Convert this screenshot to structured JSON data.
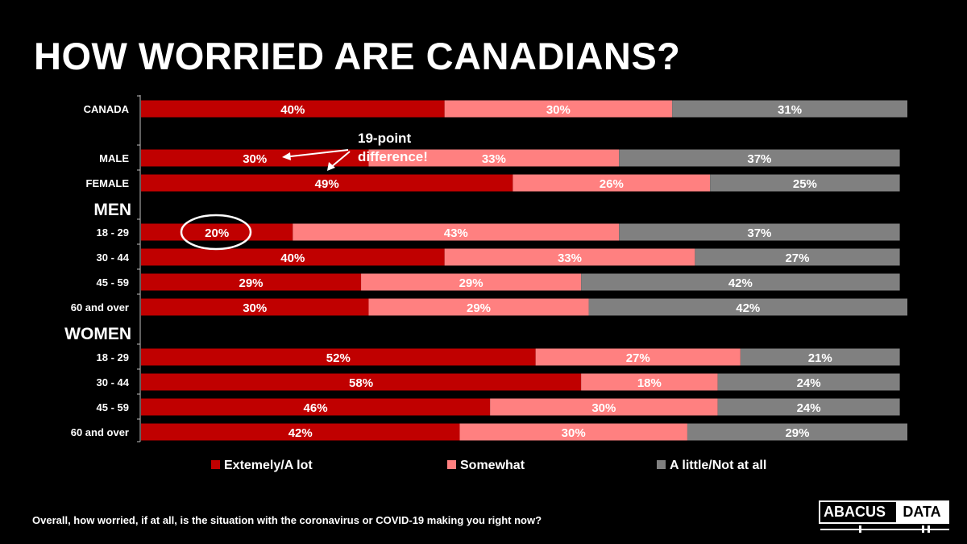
{
  "page": {
    "title": "HOW WORRIED ARE CANADIANS?"
  },
  "chart_data": {
    "type": "bar",
    "orientation": "horizontal",
    "stacked": true,
    "xlim": [
      0,
      101
    ],
    "categories": [
      "CANADA",
      "MALE",
      "FEMALE",
      "18 - 29",
      "30 - 44",
      "45 - 59",
      "60 and over",
      "18 - 29",
      "30 - 44",
      "45 - 59",
      "60 and over"
    ],
    "groups": [
      {
        "label": "",
        "categories": [
          "CANADA"
        ]
      },
      {
        "label": "",
        "categories": [
          "MALE",
          "FEMALE"
        ]
      },
      {
        "label": "MEN",
        "categories": [
          "18 - 29",
          "30 - 44",
          "45 - 59",
          "60 and over"
        ]
      },
      {
        "label": "WOMEN",
        "categories": [
          "18 - 29",
          "30 - 44",
          "45 - 59",
          "60 and over"
        ]
      }
    ],
    "series": [
      {
        "name": "Extemely/A lot",
        "color": "#c00000",
        "values": [
          40,
          30,
          49,
          20,
          40,
          29,
          30,
          52,
          58,
          46,
          42
        ],
        "labels": [
          "40%",
          "30%",
          "49%",
          "20%",
          "40%",
          "29%",
          "30%",
          "52%",
          "58%",
          "46%",
          "42%"
        ]
      },
      {
        "name": "Somewhat",
        "color": "#ff8080",
        "values": [
          30,
          33,
          26,
          43,
          33,
          29,
          29,
          27,
          18,
          30,
          30
        ],
        "labels": [
          "30%",
          "33%",
          "26%",
          "43%",
          "33%",
          "29%",
          "29%",
          "27%",
          "18%",
          "30%",
          "30%"
        ]
      },
      {
        "name": "A little/Not at all",
        "color": "#808080",
        "values": [
          31,
          37,
          25,
          37,
          27,
          42,
          42,
          21,
          24,
          24,
          29
        ],
        "labels": [
          "31%",
          "37%",
          "25%",
          "37%",
          "27%",
          "42%",
          "42%",
          "21%",
          "24%",
          "24%",
          "29%"
        ]
      }
    ],
    "annotations": [
      {
        "text_lines": [
          "19-point",
          "difference!"
        ],
        "targets": [
          "MALE",
          "FEMALE"
        ],
        "series": "Extemely/A lot"
      },
      {
        "type": "circle",
        "target": "18 - 29",
        "group": "MEN",
        "series": "Extemely/A lot"
      }
    ],
    "legend": {
      "placement": "bottom"
    },
    "grid": false
  },
  "footer": {
    "question": "Overall, how worried, if at all, is the situation with the coronavirus or COVID-19 making you right now?",
    "logo": {
      "part1": "ABACUS",
      "part2": "DATA"
    }
  }
}
